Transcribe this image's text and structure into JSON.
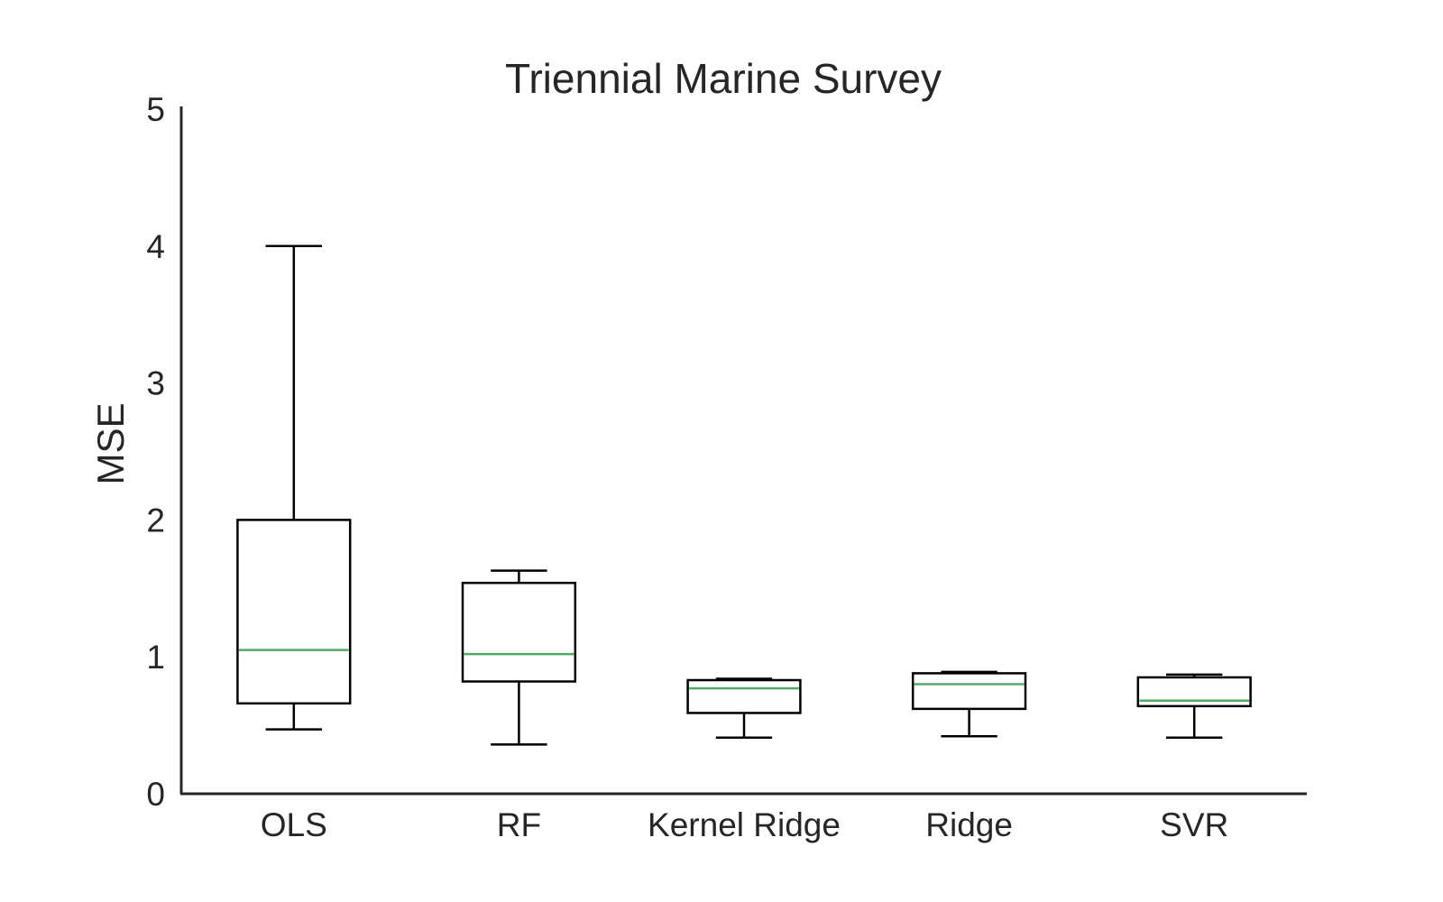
{
  "chart_data": {
    "type": "box",
    "title": "Triennial Marine Survey",
    "xlabel": "",
    "ylabel": "MSE",
    "ylim": [
      0,
      5
    ],
    "yticks": [
      0,
      1,
      2,
      3,
      4,
      5
    ],
    "grid": false,
    "categories": [
      "OLS",
      "RF",
      "Kernel Ridge",
      "Ridge",
      "SVR"
    ],
    "boxes": [
      {
        "category": "OLS",
        "whisker_low": 0.47,
        "q1": 0.66,
        "median": 1.05,
        "q3": 2.0,
        "whisker_high": 4.0
      },
      {
        "category": "RF",
        "whisker_low": 0.36,
        "q1": 0.82,
        "median": 1.02,
        "q3": 1.54,
        "whisker_high": 1.63
      },
      {
        "category": "Kernel Ridge",
        "whisker_low": 0.41,
        "q1": 0.59,
        "median": 0.77,
        "q3": 0.83,
        "whisker_high": 0.84
      },
      {
        "category": "Ridge",
        "whisker_low": 0.42,
        "q1": 0.62,
        "median": 0.8,
        "q3": 0.88,
        "whisker_high": 0.89
      },
      {
        "category": "SVR",
        "whisker_low": 0.41,
        "q1": 0.64,
        "median": 0.68,
        "q3": 0.85,
        "whisker_high": 0.87
      }
    ],
    "colors": {
      "box": "#000000",
      "median": "#55a868",
      "axis": "#262626",
      "text": "#262626"
    }
  }
}
